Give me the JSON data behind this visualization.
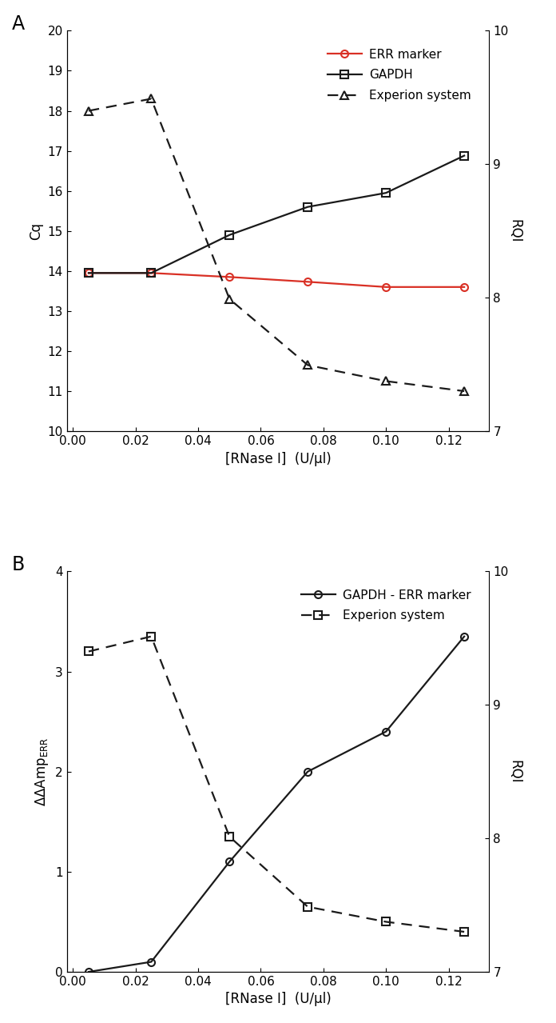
{
  "x": [
    0.005,
    0.025,
    0.05,
    0.075,
    0.1,
    0.125
  ],
  "panelA": {
    "err_marker": [
      13.95,
      13.95,
      13.85,
      13.73,
      13.6,
      13.6
    ],
    "gapdh": [
      13.95,
      13.95,
      14.9,
      15.6,
      15.95,
      16.88
    ],
    "experion_cq": [
      18.0,
      18.3,
      13.3,
      11.65,
      11.25,
      11.0
    ],
    "ylabel_left": "Cq",
    "ylabel_right": "RQI",
    "ylim_left": [
      10,
      20
    ],
    "ylim_right": [
      7,
      10
    ],
    "yticks_left": [
      10,
      11,
      12,
      13,
      14,
      15,
      16,
      17,
      18,
      19,
      20
    ],
    "yticks_right": [
      7,
      8,
      9,
      10
    ],
    "legend_err": "ERR marker",
    "legend_gapdh": "GAPDH",
    "legend_experion": "Experion system"
  },
  "panelB": {
    "gapdh_err": [
      0.0,
      0.1,
      1.1,
      2.0,
      2.4,
      3.35
    ],
    "experion_left": [
      3.2,
      3.35,
      1.35,
      0.65,
      0.5,
      0.4
    ],
    "ylabel_right": "RQI",
    "ylim_left": [
      0,
      4
    ],
    "ylim_right": [
      7,
      10
    ],
    "yticks_left": [
      0,
      1,
      2,
      3,
      4
    ],
    "yticks_right": [
      7,
      8,
      9,
      10
    ],
    "legend_gapdh_err": "GAPDH - ERR marker",
    "legend_experion": "Experion system"
  },
  "xlabel": "[RNase I]  (U/μl)",
  "xticks": [
    0.0,
    0.02,
    0.04,
    0.06,
    0.08,
    0.1,
    0.12
  ],
  "color_red": "#d93025",
  "color_black": "#1a1a1a",
  "bg_color": "#ffffff",
  "panel_label_fontsize": 17,
  "axis_label_fontsize": 12,
  "tick_fontsize": 11,
  "legend_fontsize": 11,
  "linewidth": 1.6,
  "markersize": 6.5
}
